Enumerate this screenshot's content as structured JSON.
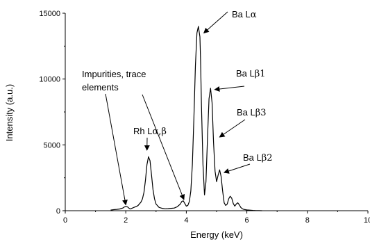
{
  "chart_data": {
    "type": "line",
    "xlabel": "Energy (keV)",
    "ylabel": "Intensity (a.u.)",
    "xlim": [
      0,
      10
    ],
    "ylim": [
      0,
      15000
    ],
    "x_ticks": [
      "0",
      "2",
      "4",
      "6",
      "8",
      "10"
    ],
    "y_ticks": [
      "0",
      "5000",
      "10000",
      "15000"
    ],
    "grid": false,
    "legend": "none",
    "line_color": "#000000",
    "series": [
      {
        "x": [
          1.5,
          1.6,
          1.7,
          1.8,
          1.9,
          1.95,
          2.0,
          2.05,
          2.1,
          2.15,
          2.2,
          2.3,
          2.4,
          2.5,
          2.55,
          2.6,
          2.65,
          2.7,
          2.75,
          2.8,
          2.85,
          2.9,
          2.95,
          3.0,
          3.1,
          3.2,
          3.3,
          3.4,
          3.5,
          3.6,
          3.7,
          3.8,
          3.85,
          3.9,
          3.95,
          4.0,
          4.05,
          4.1,
          4.15,
          4.2,
          4.25,
          4.3,
          4.35,
          4.4,
          4.45,
          4.47,
          4.5,
          4.55,
          4.6,
          4.65,
          4.7,
          4.75,
          4.8,
          4.85,
          4.9,
          4.95,
          5.0,
          5.05,
          5.1,
          5.15,
          5.2,
          5.25,
          5.3,
          5.35,
          5.4,
          5.45,
          5.5,
          5.55,
          5.6,
          5.65,
          5.7,
          5.75,
          5.8,
          5.85,
          5.9,
          6.0,
          6.1,
          6.2,
          6.3,
          6.4,
          6.5
        ],
        "y": [
          50,
          80,
          100,
          130,
          200,
          280,
          320,
          300,
          200,
          130,
          180,
          280,
          380,
          650,
          900,
          1400,
          2300,
          3500,
          4100,
          3800,
          2700,
          1600,
          900,
          500,
          250,
          180,
          150,
          160,
          180,
          200,
          300,
          500,
          700,
          750,
          550,
          350,
          400,
          700,
          1500,
          3500,
          7000,
          11000,
          13500,
          14000,
          13200,
          11500,
          8000,
          3500,
          1200,
          2200,
          5500,
          8500,
          9300,
          8200,
          5200,
          3000,
          2200,
          2700,
          3100,
          2600,
          1500,
          600,
          400,
          500,
          900,
          1100,
          950,
          550,
          350,
          500,
          600,
          450,
          250,
          150,
          100,
          60,
          40,
          20,
          10,
          5,
          0
        ]
      }
    ],
    "annotations": [
      {
        "label": "Ba Lα",
        "text_latin": "Ba L",
        "text_greek": "α",
        "target": [
          4.5,
          14000
        ]
      },
      {
        "label": "Ba Lβ1",
        "text_latin": "Ba L",
        "text_greek": "β1",
        "target": [
          4.87,
          9300
        ]
      },
      {
        "label": "Ba Lβ3",
        "text_latin": "Ba L",
        "text_greek": "β3",
        "target": [
          5.1,
          5600
        ]
      },
      {
        "label": "Ba Lβ2",
        "text_latin": "Ba L",
        "text_greek": "β2",
        "target": [
          5.25,
          2900
        ]
      },
      {
        "label": "Rh Lα,β",
        "text_latin": "Rh L",
        "text_greek": "α,β",
        "target": [
          2.7,
          4200
        ]
      },
      {
        "label": "Impurities, trace elements",
        "line1": "Impurities, trace",
        "line2": "elements",
        "targets": [
          [
            2.0,
            450
          ],
          [
            3.92,
            850
          ]
        ]
      }
    ]
  }
}
